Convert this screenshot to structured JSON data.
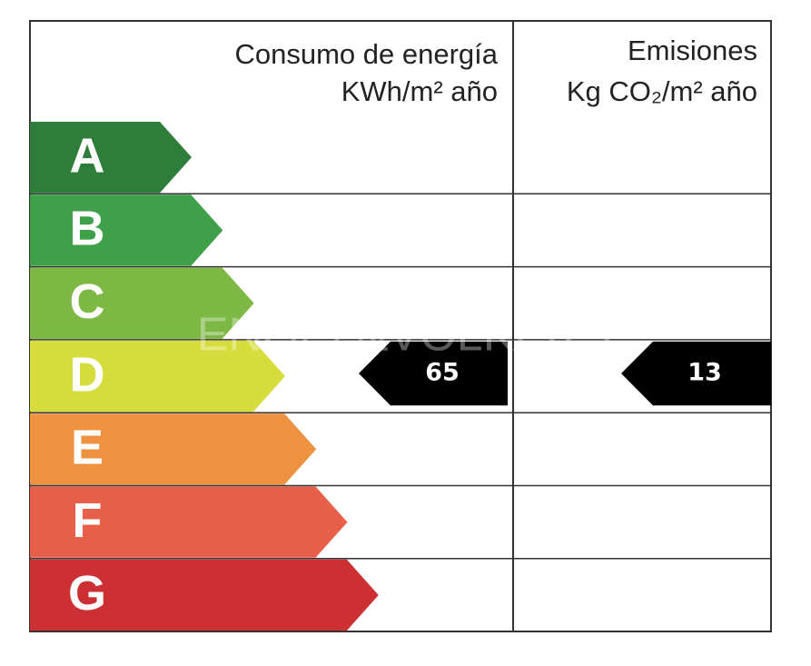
{
  "header": {
    "consumption": [
      "Consumo de energía",
      "KWh/m² año"
    ],
    "emissions": [
      "Emisiones",
      "Kg CO₂/m² año"
    ]
  },
  "ratings": [
    {
      "label": "A",
      "color": "#2f7d3b"
    },
    {
      "label": "B",
      "color": "#3fa04a"
    },
    {
      "label": "C",
      "color": "#7cb843"
    },
    {
      "label": "D",
      "color": "#d5dc3b"
    },
    {
      "label": "E",
      "color": "#ef9240"
    },
    {
      "label": "F",
      "color": "#e8604a"
    },
    {
      "label": "G",
      "color": "#cc3033"
    }
  ],
  "consumption": {
    "rating": "D",
    "value": 65
  },
  "emissions": {
    "rating": "D",
    "value": 13
  },
  "watermark": "ENGEL&VÖLKERS"
}
